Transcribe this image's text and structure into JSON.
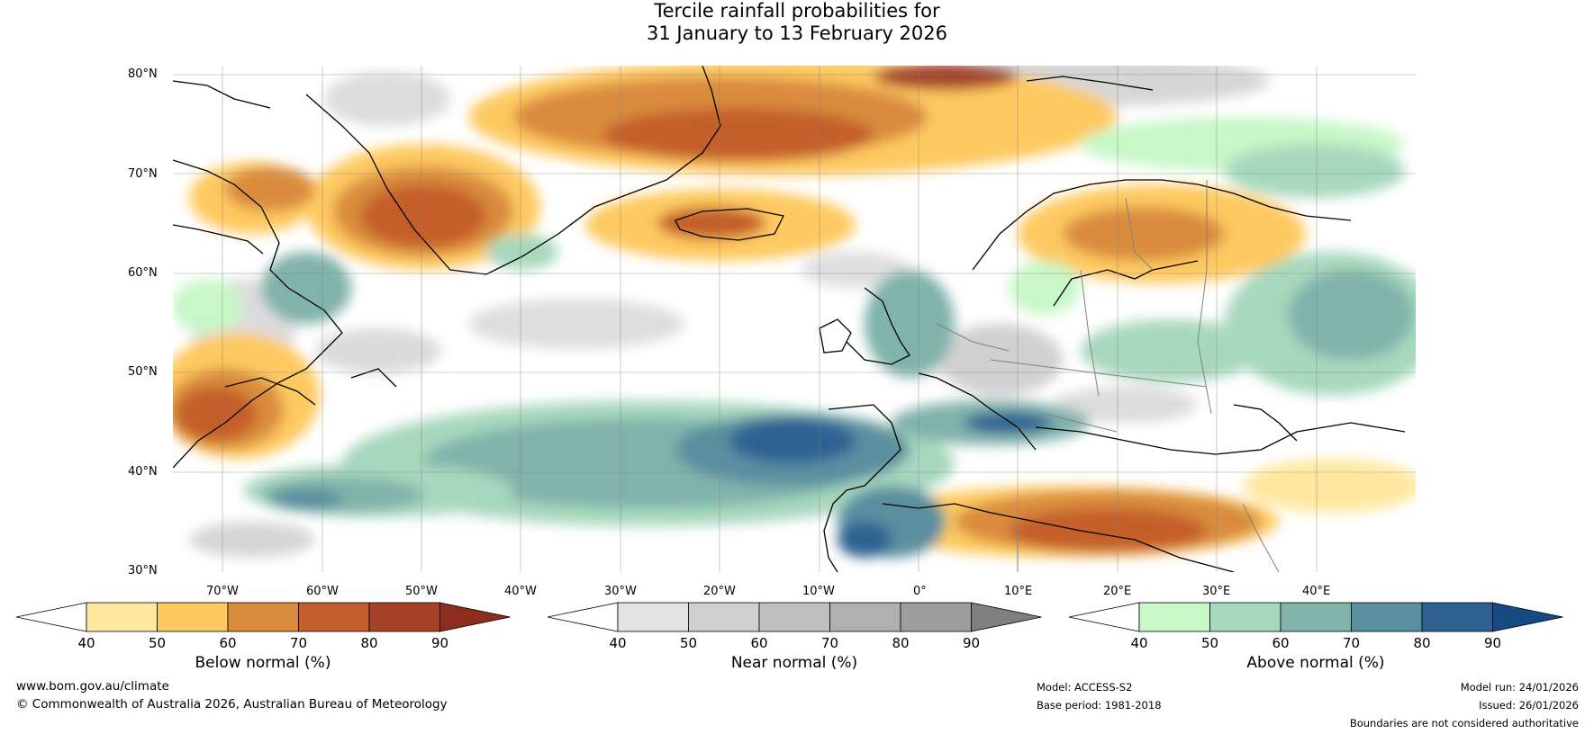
{
  "title": {
    "line1": "Tercile rainfall probabilities for",
    "line2": "31 January to 13 February 2026"
  },
  "map": {
    "lat_labels": [
      "80°N",
      "70°N",
      "60°N",
      "50°N",
      "40°N",
      "30°N"
    ],
    "lon_labels": [
      "70°W",
      "60°W",
      "50°W",
      "40°W",
      "30°W",
      "20°W",
      "10°W",
      "0°",
      "10°E",
      "20°E",
      "30°E",
      "40°E"
    ],
    "extent": {
      "lon_min": -77,
      "lon_max": 48,
      "lat_min": 30,
      "lat_max": 81
    }
  },
  "colorbars": [
    {
      "id": "below",
      "label": "Below normal (%)",
      "ticks": [
        "40",
        "50",
        "60",
        "70",
        "80",
        "90"
      ],
      "colors": [
        "#ffffff",
        "#fee8a0",
        "#fec961",
        "#d98c3c",
        "#c45e2c",
        "#a5432a",
        "#8b2e1e"
      ]
    },
    {
      "id": "near",
      "label": "Near normal (%)",
      "ticks": [
        "40",
        "50",
        "60",
        "70",
        "80",
        "90"
      ],
      "colors": [
        "#ffffff",
        "#e3e3e3",
        "#d0d0d0",
        "#c0c0c0",
        "#b0b0b0",
        "#9e9e9e",
        "#808080"
      ]
    },
    {
      "id": "above",
      "label": "Above normal (%)",
      "ticks": [
        "40",
        "50",
        "60",
        "70",
        "80",
        "90"
      ],
      "colors": [
        "#ffffff",
        "#c8f7c8",
        "#a7d8bd",
        "#80b3aa",
        "#5a8fa0",
        "#2f6292",
        "#154a82"
      ]
    }
  ],
  "footer": {
    "website": "www.bom.gov.au/climate",
    "copyright": "© Commonwealth of Australia 2026, Australian Bureau of Meteorology",
    "model": "Model: ACCESS-S2",
    "base_period": "Base period: 1981-2018",
    "model_run": "Model run: 24/01/2026",
    "issued": "Issued: 26/01/2026",
    "disclaimer": "Boundaries are not considered authoritative"
  }
}
